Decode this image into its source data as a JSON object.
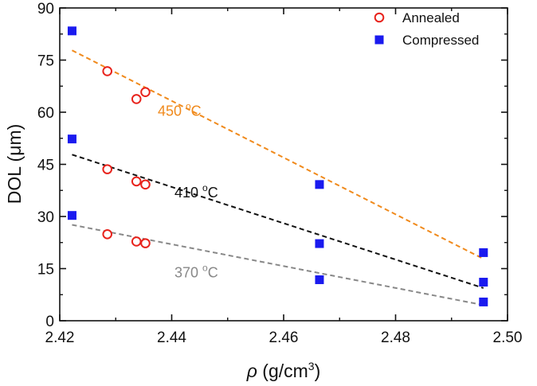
{
  "chart_data": {
    "type": "scatter",
    "xlabel_symbol": "ρ",
    "xlabel_text": " (g/cm",
    "xlabel_sup": "3",
    "xlabel_close": ")",
    "ylabel": "DOL (μm)",
    "xlim": [
      2.42,
      2.5
    ],
    "ylim": [
      0,
      90
    ],
    "xticks": [
      2.42,
      2.44,
      2.46,
      2.48,
      2.5
    ],
    "xtick_labels": [
      "2.42",
      "2.44",
      "2.46",
      "2.48",
      "2.50"
    ],
    "yticks": [
      0,
      15,
      30,
      45,
      60,
      75,
      90
    ],
    "ytick_labels": [
      "0",
      "15",
      "30",
      "45",
      "60",
      "75",
      "90"
    ],
    "grid": false,
    "legend_position": "top-right",
    "series": [
      {
        "name": "Annealed",
        "marker": "open-circle",
        "color": "#e8231c",
        "points": [
          {
            "x": 2.4285,
            "y": 71.8
          },
          {
            "x": 2.4337,
            "y": 63.8
          },
          {
            "x": 2.4353,
            "y": 65.8
          },
          {
            "x": 2.4285,
            "y": 43.6
          },
          {
            "x": 2.4337,
            "y": 40.1
          },
          {
            "x": 2.4353,
            "y": 39.2
          },
          {
            "x": 2.4285,
            "y": 24.9
          },
          {
            "x": 2.4337,
            "y": 22.8
          },
          {
            "x": 2.4353,
            "y": 22.3
          }
        ]
      },
      {
        "name": "Compressed",
        "marker": "filled-square",
        "color": "#1a1aef",
        "points": [
          {
            "x": 2.4222,
            "y": 83.4
          },
          {
            "x": 2.4222,
            "y": 52.3
          },
          {
            "x": 2.4222,
            "y": 30.3
          },
          {
            "x": 2.4664,
            "y": 39.2
          },
          {
            "x": 2.4664,
            "y": 22.2
          },
          {
            "x": 2.4664,
            "y": 11.8
          },
          {
            "x": 2.4957,
            "y": 19.6
          },
          {
            "x": 2.4957,
            "y": 11.1
          },
          {
            "x": 2.4957,
            "y": 5.4
          }
        ]
      }
    ],
    "fit_lines": [
      {
        "label": "450 °C",
        "label_num": "450 ",
        "label_sup": "o",
        "label_unit": "C",
        "color": "#f08a1c",
        "x": [
          2.4222,
          2.4957
        ],
        "y": [
          77.8,
          17.8
        ],
        "label_at": {
          "x": 2.4375,
          "y": 59.0
        }
      },
      {
        "label": "410 °C",
        "label_num": "410 ",
        "label_sup": "o",
        "label_unit": "C",
        "color": "#111111",
        "x": [
          2.4222,
          2.4957
        ],
        "y": [
          47.8,
          9.4
        ],
        "label_at": {
          "x": 2.4405,
          "y": 35.5
        }
      },
      {
        "label": "370 °C",
        "label_num": "370 ",
        "label_sup": "o",
        "label_unit": "C",
        "color": "#888888",
        "x": [
          2.4222,
          2.4957
        ],
        "y": [
          27.6,
          4.5
        ],
        "label_at": {
          "x": 2.4405,
          "y": 12.5
        }
      }
    ]
  }
}
